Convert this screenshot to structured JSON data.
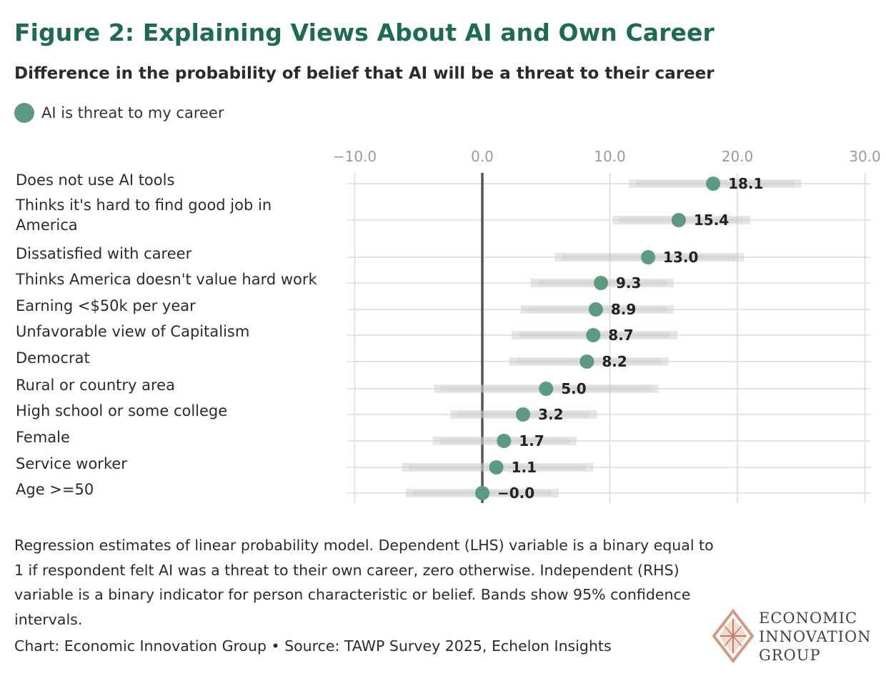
{
  "title": "Figure 2: Explaining Views About AI and Own Career",
  "subtitle": "Difference in the probability of belief that AI will be a threat to their career",
  "legend": {
    "label": "AI is threat to my career",
    "color": "#5c9b82"
  },
  "notes": "Regression estimates of linear probability model. Dependent (LHS) variable is a binary equal to 1 if respondent felt AI was a threat to their own career, zero otherwise. Independent (RHS) variable is a binary indicator for person characteristic or belief. Bands show 95% confidence intervals.",
  "source": "Chart: Economic Innovation Group • Source: TAWP Survey 2025, Echelon Insights",
  "logo": {
    "line1": "ECONOMIC",
    "line2": "INNOVATION",
    "line3": "GROUP"
  },
  "chart_data": {
    "type": "scatter",
    "title": "Figure 2: Explaining Views About AI and Own Career",
    "xlim": [
      -10,
      30
    ],
    "xticks": [
      -10,
      0,
      10,
      20,
      30
    ],
    "tick_labels": [
      "−10.0",
      "0.0",
      "10.0",
      "20.0",
      "30.0"
    ],
    "series": [
      {
        "name": "AI is threat to my career",
        "color": "#5c9b82",
        "points": [
          {
            "label": [
              "Does not use AI tools"
            ],
            "value": 18.1,
            "value_label": "18.1",
            "ci": [
              11.5,
              25.0
            ]
          },
          {
            "label": [
              "Thinks it's hard to find good job in",
              "America"
            ],
            "value": 15.4,
            "value_label": "15.4",
            "ci": [
              10.2,
              21.0
            ]
          },
          {
            "label": [
              "Dissatisfied with career"
            ],
            "value": 13.0,
            "value_label": "13.0",
            "ci": [
              5.7,
              20.5
            ]
          },
          {
            "label": [
              "Thinks America doesn't value hard work"
            ],
            "value": 9.3,
            "value_label": "9.3",
            "ci": [
              3.8,
              15.0
            ]
          },
          {
            "label": [
              "Earning <$50k per year"
            ],
            "value": 8.9,
            "value_label": "8.9",
            "ci": [
              3.0,
              15.0
            ]
          },
          {
            "label": [
              "Unfavorable view of Capitalism"
            ],
            "value": 8.7,
            "value_label": "8.7",
            "ci": [
              2.3,
              15.3
            ]
          },
          {
            "label": [
              "Democrat"
            ],
            "value": 8.2,
            "value_label": "8.2",
            "ci": [
              2.1,
              14.6
            ]
          },
          {
            "label": [
              "Rural or country area"
            ],
            "value": 5.0,
            "value_label": "5.0",
            "ci": [
              -3.8,
              13.8
            ]
          },
          {
            "label": [
              "High school or some college"
            ],
            "value": 3.2,
            "value_label": "3.2",
            "ci": [
              -2.5,
              9.0
            ]
          },
          {
            "label": [
              "Female"
            ],
            "value": 1.7,
            "value_label": "1.7",
            "ci": [
              -3.9,
              7.4
            ]
          },
          {
            "label": [
              "Service worker"
            ],
            "value": 1.1,
            "value_label": "1.1",
            "ci": [
              -6.3,
              8.7
            ]
          },
          {
            "label": [
              "Age >=50"
            ],
            "value": 0.0,
            "value_label": "−0.0",
            "ci": [
              -6.0,
              6.0
            ]
          }
        ]
      }
    ]
  }
}
